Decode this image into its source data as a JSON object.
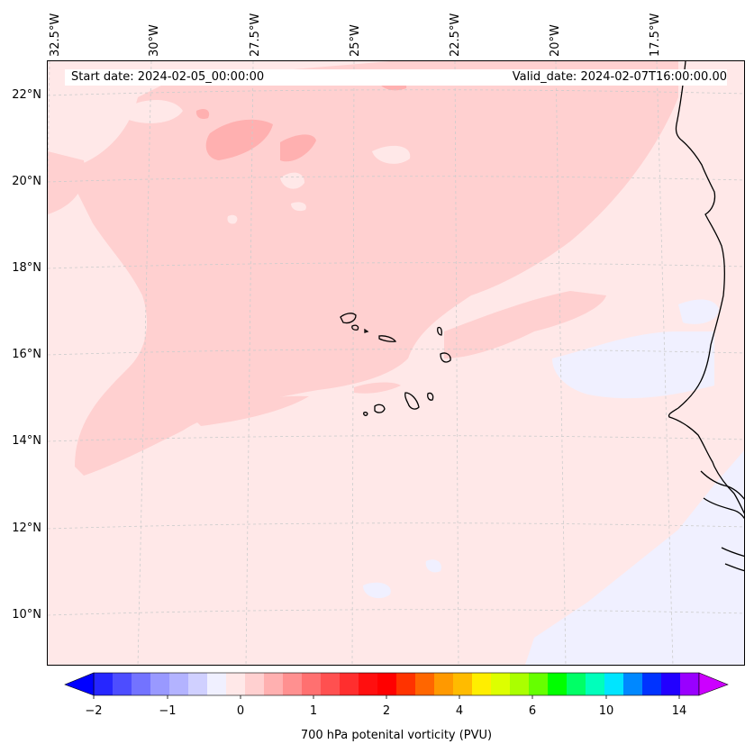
{
  "header": {
    "start_date": "Start date: 2024-02-05_00:00:00",
    "valid_date": "Valid_date: 2024-02-07T16:00:00.00"
  },
  "axes": {
    "longitude_labels": [
      "32.5°W",
      "30°W",
      "27.5°W",
      "25°W",
      "22.5°W",
      "20°W",
      "17.5°W"
    ],
    "latitude_labels": [
      "22°N",
      "20°N",
      "18°N",
      "16°N",
      "14°N",
      "12°N",
      "10°N"
    ]
  },
  "colorbar": {
    "title": "700 hPa potenital vorticity (PVU)",
    "tick_labels": [
      "−2",
      "−1",
      "0",
      "1",
      "2",
      "4",
      "6",
      "10",
      "14"
    ],
    "colors": [
      "#0000ff",
      "#2626ff",
      "#4d4dff",
      "#7373ff",
      "#9999ff",
      "#b3b3ff",
      "#d0d0ff",
      "#f0f0ff",
      "#ffe8e8",
      "#ffd0d0",
      "#ffb0b0",
      "#ff9090",
      "#ff7070",
      "#ff5050",
      "#ff2e2e",
      "#ff0f0f",
      "#ff0000",
      "#ff3300",
      "#ff6600",
      "#ff9900",
      "#ffbb00",
      "#ffee00",
      "#ddff00",
      "#aaff00",
      "#66ff00",
      "#00ff00",
      "#00ff66",
      "#00ffbb",
      "#00e5ff",
      "#0088ff",
      "#0033ff",
      "#2200ff",
      "#9900ff",
      "#cc00ff"
    ]
  },
  "field_colors": {
    "background": "#ffe8e8",
    "light_pink": "#ffd0d0",
    "medium_pink": "#ffb0b0",
    "pale_blue": "#f0f0ff",
    "pale_white": "#fff4f4",
    "coastline": "#000000",
    "gridline": "#cccccc"
  }
}
